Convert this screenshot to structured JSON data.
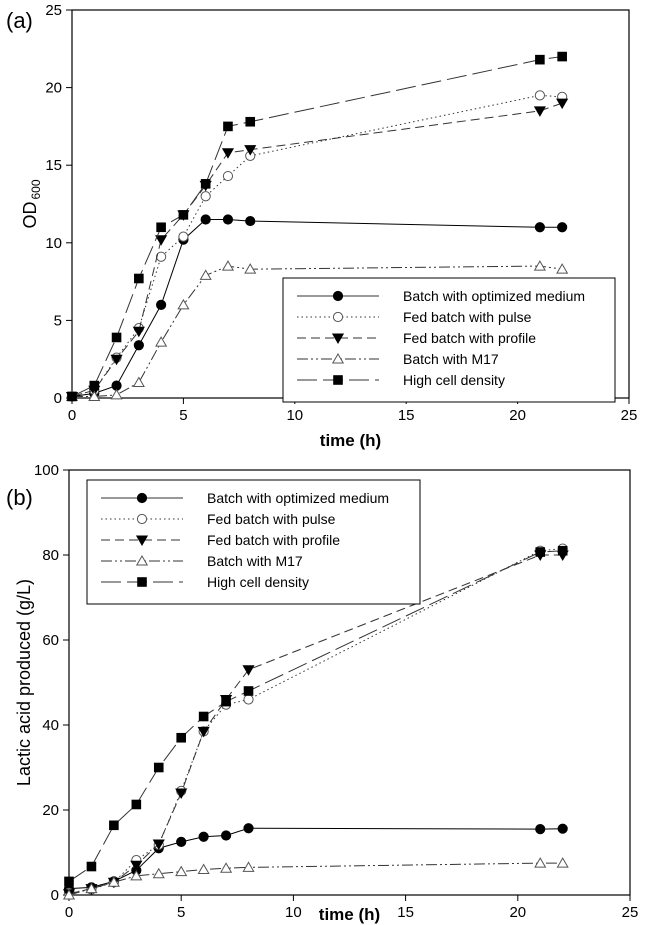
{
  "chart_data": [
    {
      "type": "line",
      "panel_label": "(a)",
      "xlabel": "time (h)",
      "ylabel": "OD",
      "ylabel_sub": "600",
      "xlim": [
        0,
        25
      ],
      "ylim": [
        0,
        25
      ],
      "xticks": [
        0,
        5,
        10,
        15,
        20,
        25
      ],
      "yticks": [
        0,
        5,
        10,
        15,
        20,
        25
      ],
      "grid": false,
      "legend_position": "lower-right",
      "series": [
        {
          "name": "Batch with optimized medium",
          "marker": "filled-circle",
          "dash": "solid",
          "x": [
            0,
            1,
            2,
            3,
            4,
            5,
            6,
            7,
            8,
            21,
            22
          ],
          "y": [
            0.1,
            0.3,
            0.8,
            3.4,
            6.0,
            10.2,
            11.5,
            11.5,
            11.4,
            11.0,
            11.0
          ]
        },
        {
          "name": "Fed batch with pulse",
          "marker": "open-circle",
          "dash": "dotted",
          "x": [
            0,
            1,
            2,
            3,
            4,
            5,
            6,
            7,
            8,
            21,
            22
          ],
          "y": [
            0.1,
            0.5,
            2.6,
            4.5,
            9.1,
            10.4,
            13.0,
            14.3,
            15.6,
            19.5,
            19.4
          ]
        },
        {
          "name": "Fed batch with profile",
          "marker": "filled-triangle-down",
          "dash": "dashed",
          "x": [
            0,
            1,
            2,
            3,
            4,
            5,
            6,
            7,
            8,
            21,
            22
          ],
          "y": [
            0.1,
            0.5,
            2.5,
            4.3,
            10.2,
            11.8,
            13.7,
            15.8,
            16.0,
            18.5,
            19.0
          ]
        },
        {
          "name": "Batch with M17",
          "marker": "open-triangle-up",
          "dash": "dash-dot-dot",
          "x": [
            0,
            1,
            2,
            3,
            4,
            5,
            6,
            7,
            8,
            21,
            22
          ],
          "y": [
            0.1,
            0.1,
            0.2,
            1.0,
            3.6,
            6.0,
            7.9,
            8.5,
            8.3,
            8.5,
            8.3
          ]
        },
        {
          "name": "High cell density",
          "marker": "filled-square",
          "dash": "long-dash",
          "x": [
            0,
            1,
            2,
            3,
            4,
            5,
            6,
            7,
            8,
            21,
            22
          ],
          "y": [
            0.1,
            0.8,
            3.9,
            7.7,
            11.0,
            11.8,
            13.8,
            17.5,
            17.8,
            21.8,
            22.0
          ]
        }
      ]
    },
    {
      "type": "line",
      "panel_label": "(b)",
      "xlabel": "time (h)",
      "ylabel": "Lactic acid produced (g/L)",
      "ylabel_sub": "",
      "xlim": [
        0,
        25
      ],
      "ylim": [
        0,
        100
      ],
      "xticks": [
        0,
        5,
        10,
        15,
        20,
        25
      ],
      "yticks": [
        0,
        20,
        40,
        60,
        80,
        100
      ],
      "grid": false,
      "legend_position": "top-left",
      "series": [
        {
          "name": "Batch with optimized medium",
          "marker": "filled-circle",
          "dash": "solid",
          "x": [
            0,
            1,
            2,
            3,
            4,
            5,
            6,
            7,
            8,
            21,
            22
          ],
          "y": [
            1.5,
            1.8,
            3.2,
            5.8,
            11.0,
            12.5,
            13.7,
            14.0,
            15.7,
            15.5,
            15.6
          ]
        },
        {
          "name": "Fed batch with pulse",
          "marker": "open-circle",
          "dash": "dotted",
          "x": [
            0,
            1,
            2,
            3,
            4,
            5,
            6,
            7,
            8,
            21,
            22
          ],
          "y": [
            0.5,
            1.3,
            3.0,
            8.2,
            11.8,
            24.5,
            38.5,
            44.8,
            46.0,
            81.0,
            81.5
          ]
        },
        {
          "name": "Fed batch with profile",
          "marker": "filled-triangle-down",
          "dash": "dashed",
          "x": [
            0,
            1,
            2,
            3,
            4,
            5,
            6,
            7,
            8,
            21,
            22
          ],
          "y": [
            0.3,
            1.5,
            3.0,
            7.0,
            12.0,
            24.0,
            38.5,
            46.0,
            53.0,
            80.0,
            80.0
          ]
        },
        {
          "name": "Batch with M17",
          "marker": "open-triangle-up",
          "dash": "dash-dot-dot",
          "x": [
            0,
            1,
            2,
            3,
            4,
            5,
            6,
            7,
            8,
            21,
            22
          ],
          "y": [
            0.0,
            1.5,
            3.0,
            4.5,
            5.0,
            5.5,
            6.0,
            6.3,
            6.5,
            7.5,
            7.5
          ]
        },
        {
          "name": "High cell density",
          "marker": "filled-square",
          "dash": "long-dash",
          "x": [
            0,
            1,
            2,
            3,
            4,
            5,
            6,
            7,
            8,
            21,
            22
          ],
          "y": [
            3.2,
            6.7,
            16.4,
            21.3,
            30.0,
            37.0,
            42.0,
            45.5,
            48.0,
            80.7,
            81.0
          ]
        }
      ]
    }
  ]
}
